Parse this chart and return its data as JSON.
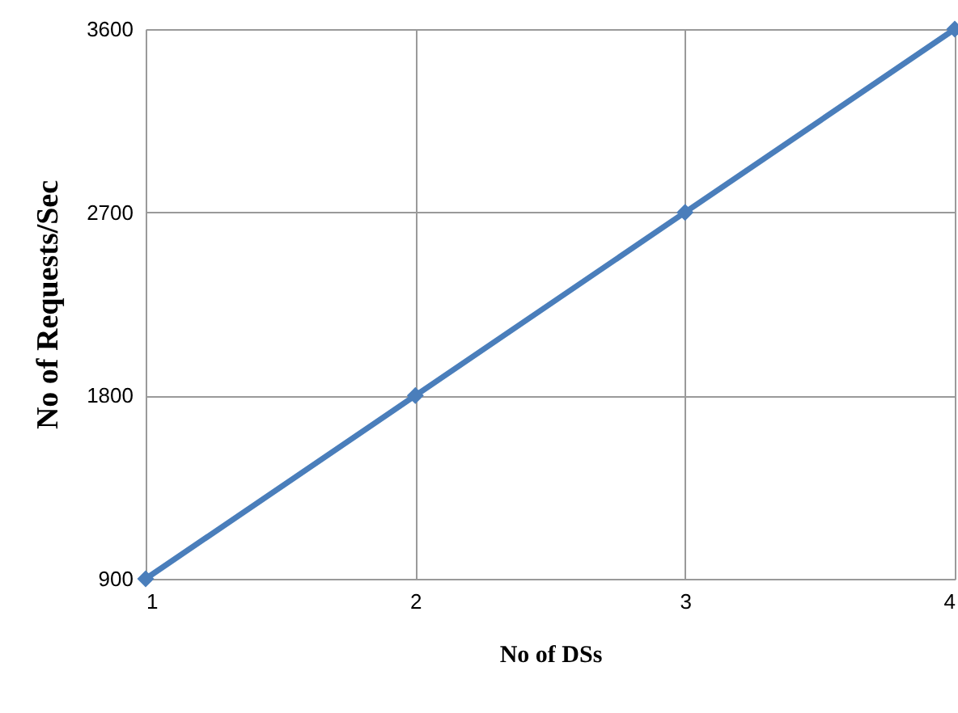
{
  "chart_data": {
    "type": "line",
    "xlabel": "No of DSs",
    "ylabel": "No of Requests/Sec",
    "x": [
      1,
      2,
      3,
      4
    ],
    "series": [
      {
        "color": "#4a7ebb",
        "values": [
          900,
          1800,
          2700,
          3600
        ]
      }
    ],
    "xlim": [
      1,
      4
    ],
    "xticks": [
      1,
      2,
      3,
      4
    ],
    "ylim": [
      900,
      3600
    ],
    "yticks": [
      900,
      1800,
      2700,
      3600
    ],
    "grid": true,
    "marker": "diamond",
    "line_style": "solid"
  }
}
